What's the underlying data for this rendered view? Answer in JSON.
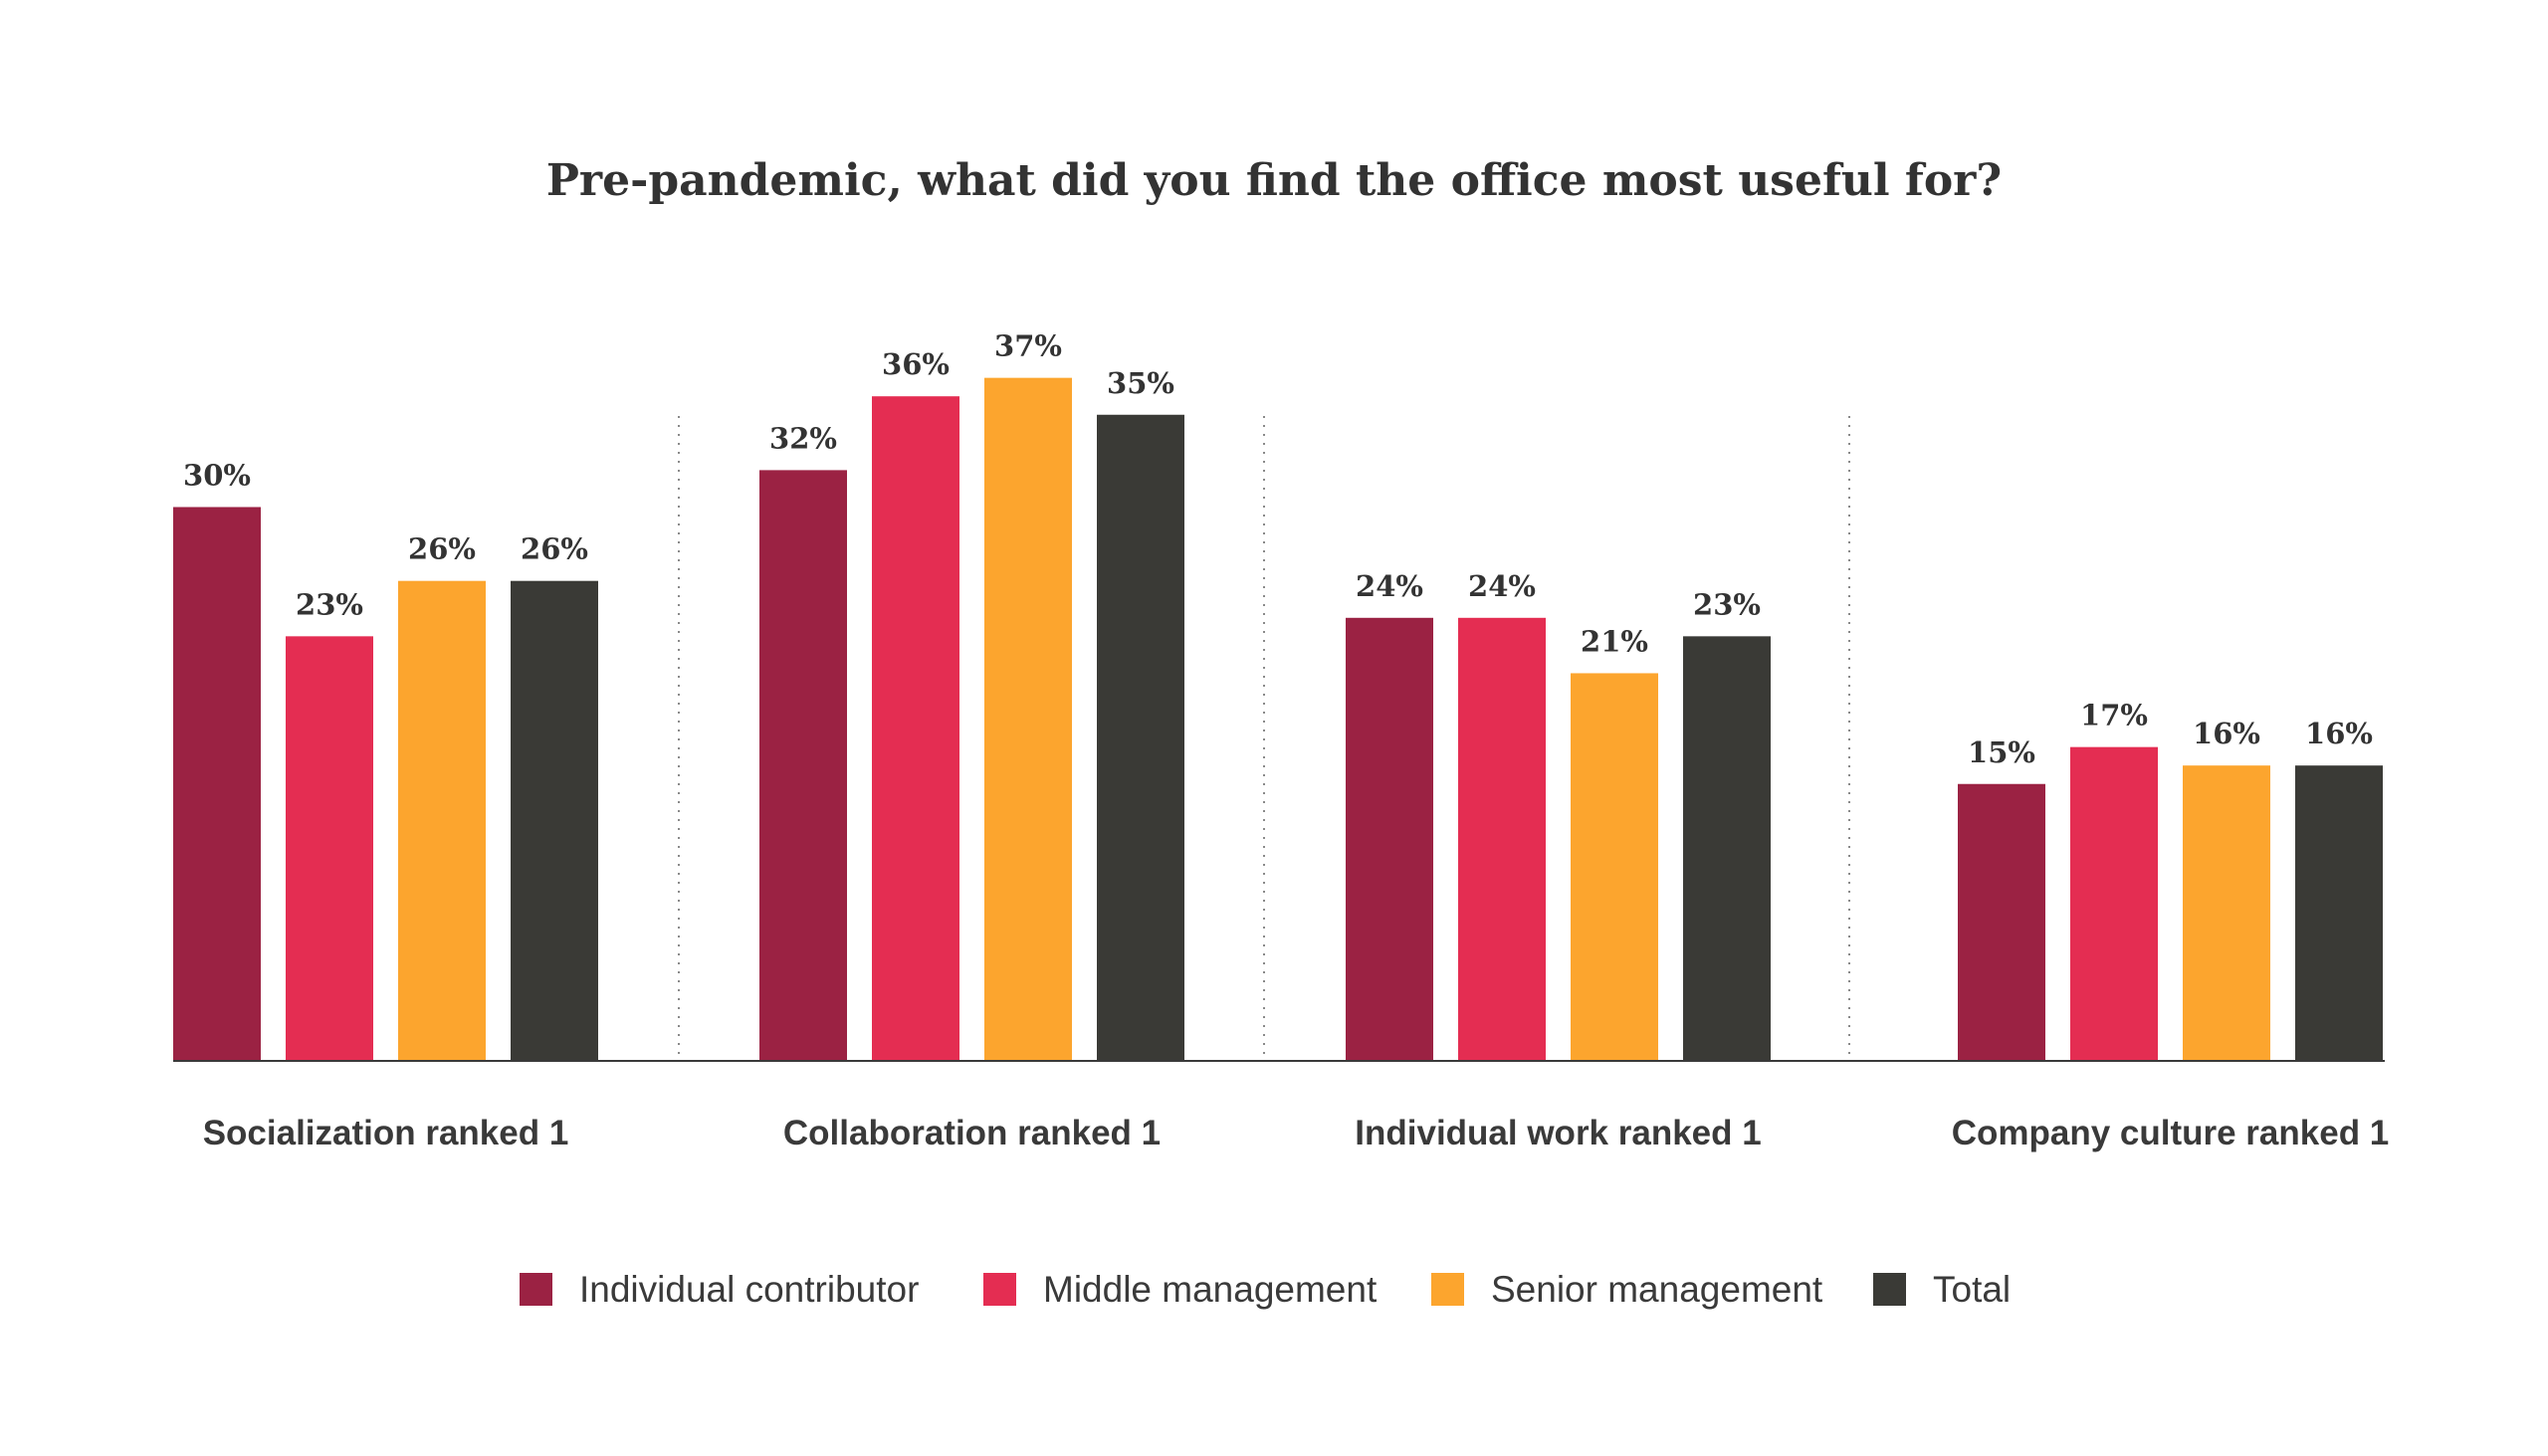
{
  "chart_data": {
    "type": "bar",
    "title": "Pre-pandemic, what did you find the office most useful for?",
    "categories": [
      "Socialization ranked 1",
      "Collaboration ranked 1",
      "Individual work ranked 1",
      "Company culture ranked 1"
    ],
    "series": [
      {
        "name": "Individual contributor",
        "color": "#9b2243",
        "values": [
          30,
          32,
          24,
          15
        ]
      },
      {
        "name": "Middle management",
        "color": "#e42d52",
        "values": [
          23,
          36,
          24,
          17
        ]
      },
      {
        "name": "Senior management",
        "color": "#fca52e",
        "values": [
          26,
          37,
          21,
          16
        ]
      },
      {
        "name": "Total",
        "color": "#3a3a36",
        "values": [
          26,
          35,
          23,
          16
        ]
      }
    ],
    "value_suffix": "%",
    "ylim": [
      0,
      40
    ],
    "grid": false,
    "legend_position": "bottom-center",
    "separators": "dotted-between-groups"
  }
}
